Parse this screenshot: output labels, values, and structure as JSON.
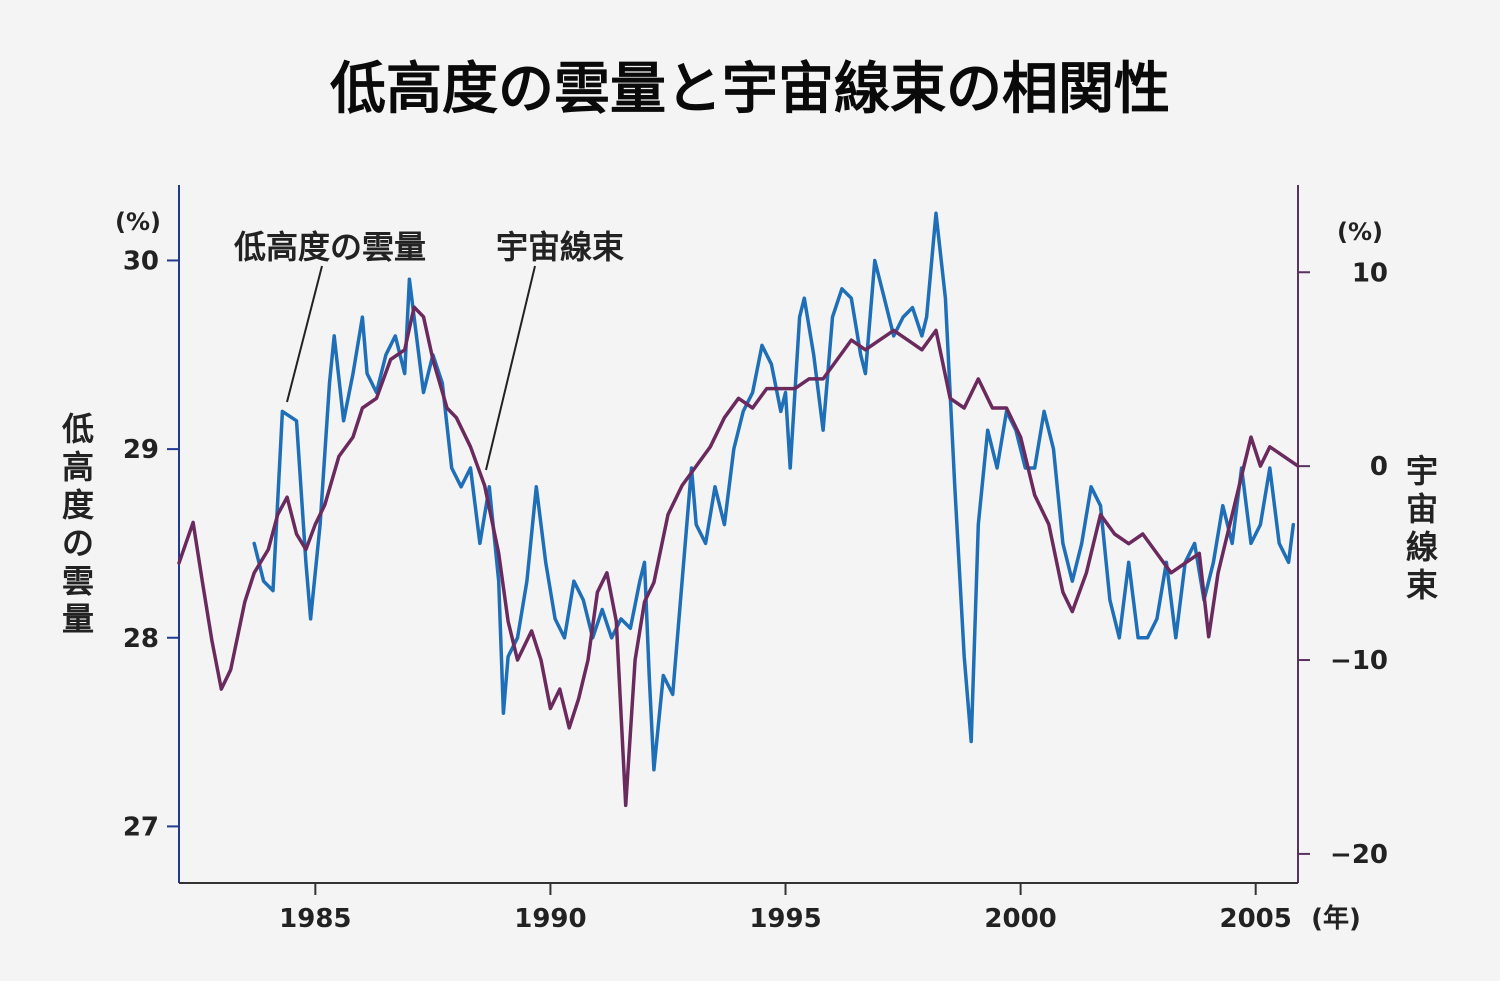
{
  "title": "低高度の雲量と宇宙線束の相関性",
  "chart_data": {
    "type": "line",
    "title": "低高度の雲量と宇宙線束の相関性",
    "x_unit": "(年)",
    "x_ticks": [
      "1985",
      "1990",
      "1995",
      "2000",
      "2005"
    ],
    "xlim": [
      1982.1,
      2005.9
    ],
    "left_axis": {
      "title": "低高度の雲量",
      "unit": "(%)",
      "ticks": [
        "27",
        "28",
        "29",
        "30"
      ],
      "ylim": [
        26.7,
        30.4
      ],
      "color": "#1f3a93"
    },
    "right_axis": {
      "title": "宇宙線束",
      "unit": "(%)",
      "ticks": [
        "−20",
        "−10",
        "0",
        "10"
      ],
      "ylim": [
        -21.5,
        14.5
      ],
      "color": "#5a3260"
    },
    "annotations": [
      "低高度の雲量",
      "宇宙線束"
    ],
    "series": [
      {
        "name": "低高度の雲量",
        "axis": "left",
        "color": "#1e6fb8",
        "points": [
          [
            1983.7,
            28.5
          ],
          [
            1983.9,
            28.3
          ],
          [
            1984.1,
            28.25
          ],
          [
            1984.3,
            29.2
          ],
          [
            1984.6,
            29.15
          ],
          [
            1984.8,
            28.4
          ],
          [
            1984.9,
            28.1
          ],
          [
            1985.1,
            28.6
          ],
          [
            1985.3,
            29.35
          ],
          [
            1985.4,
            29.6
          ],
          [
            1985.6,
            29.15
          ],
          [
            1985.8,
            29.4
          ],
          [
            1986.0,
            29.7
          ],
          [
            1986.1,
            29.4
          ],
          [
            1986.3,
            29.3
          ],
          [
            1986.5,
            29.5
          ],
          [
            1986.7,
            29.6
          ],
          [
            1986.9,
            29.4
          ],
          [
            1987.0,
            29.9
          ],
          [
            1987.1,
            29.7
          ],
          [
            1987.3,
            29.3
          ],
          [
            1987.5,
            29.5
          ],
          [
            1987.7,
            29.35
          ],
          [
            1987.9,
            28.9
          ],
          [
            1988.1,
            28.8
          ],
          [
            1988.3,
            28.9
          ],
          [
            1988.5,
            28.5
          ],
          [
            1988.7,
            28.8
          ],
          [
            1988.9,
            28.3
          ],
          [
            1989.0,
            27.6
          ],
          [
            1989.1,
            27.9
          ],
          [
            1989.3,
            28.0
          ],
          [
            1989.5,
            28.3
          ],
          [
            1989.7,
            28.8
          ],
          [
            1989.9,
            28.4
          ],
          [
            1990.1,
            28.1
          ],
          [
            1990.3,
            28.0
          ],
          [
            1990.5,
            28.3
          ],
          [
            1990.7,
            28.2
          ],
          [
            1990.9,
            28.0
          ],
          [
            1991.1,
            28.15
          ],
          [
            1991.3,
            28.0
          ],
          [
            1991.5,
            28.1
          ],
          [
            1991.7,
            28.05
          ],
          [
            1991.9,
            28.3
          ],
          [
            1992.0,
            28.4
          ],
          [
            1992.1,
            27.8
          ],
          [
            1992.2,
            27.3
          ],
          [
            1992.4,
            27.8
          ],
          [
            1992.6,
            27.7
          ],
          [
            1992.8,
            28.3
          ],
          [
            1993.0,
            28.9
          ],
          [
            1993.1,
            28.6
          ],
          [
            1993.3,
            28.5
          ],
          [
            1993.5,
            28.8
          ],
          [
            1993.7,
            28.6
          ],
          [
            1993.9,
            29.0
          ],
          [
            1994.1,
            29.2
          ],
          [
            1994.3,
            29.3
          ],
          [
            1994.5,
            29.55
          ],
          [
            1994.7,
            29.45
          ],
          [
            1994.9,
            29.2
          ],
          [
            1995.0,
            29.3
          ],
          [
            1995.1,
            28.9
          ],
          [
            1995.3,
            29.7
          ],
          [
            1995.4,
            29.8
          ],
          [
            1995.6,
            29.5
          ],
          [
            1995.8,
            29.1
          ],
          [
            1996.0,
            29.7
          ],
          [
            1996.2,
            29.85
          ],
          [
            1996.4,
            29.8
          ],
          [
            1996.6,
            29.5
          ],
          [
            1996.7,
            29.4
          ],
          [
            1996.9,
            30.0
          ],
          [
            1997.1,
            29.8
          ],
          [
            1997.3,
            29.6
          ],
          [
            1997.5,
            29.7
          ],
          [
            1997.7,
            29.75
          ],
          [
            1997.9,
            29.6
          ],
          [
            1998.0,
            29.7
          ],
          [
            1998.2,
            30.25
          ],
          [
            1998.4,
            29.8
          ],
          [
            1998.6,
            28.8
          ],
          [
            1998.8,
            27.9
          ],
          [
            1998.95,
            27.45
          ],
          [
            1999.1,
            28.6
          ],
          [
            1999.3,
            29.1
          ],
          [
            1999.5,
            28.9
          ],
          [
            1999.7,
            29.2
          ],
          [
            1999.9,
            29.1
          ],
          [
            2000.1,
            28.9
          ],
          [
            2000.3,
            28.9
          ],
          [
            2000.5,
            29.2
          ],
          [
            2000.7,
            29.0
          ],
          [
            2000.9,
            28.5
          ],
          [
            2001.1,
            28.3
          ],
          [
            2001.3,
            28.5
          ],
          [
            2001.5,
            28.8
          ],
          [
            2001.7,
            28.7
          ],
          [
            2001.9,
            28.2
          ],
          [
            2002.1,
            28.0
          ],
          [
            2002.3,
            28.4
          ],
          [
            2002.5,
            28.0
          ],
          [
            2002.7,
            28.0
          ],
          [
            2002.9,
            28.1
          ],
          [
            2003.1,
            28.4
          ],
          [
            2003.3,
            28.0
          ],
          [
            2003.5,
            28.4
          ],
          [
            2003.7,
            28.5
          ],
          [
            2003.9,
            28.2
          ],
          [
            2004.1,
            28.4
          ],
          [
            2004.3,
            28.7
          ],
          [
            2004.5,
            28.5
          ],
          [
            2004.7,
            28.9
          ],
          [
            2004.9,
            28.5
          ],
          [
            2005.1,
            28.6
          ],
          [
            2005.3,
            28.9
          ],
          [
            2005.5,
            28.5
          ],
          [
            2005.7,
            28.4
          ],
          [
            2005.8,
            28.6
          ]
        ]
      },
      {
        "name": "宇宙線束",
        "axis": "right",
        "color": "#6b2a5e",
        "points": [
          [
            1982.1,
            -5.0
          ],
          [
            1982.4,
            -2.9
          ],
          [
            1982.6,
            -6.0
          ],
          [
            1982.8,
            -9.0
          ],
          [
            1983.0,
            -11.5
          ],
          [
            1983.2,
            -10.5
          ],
          [
            1983.5,
            -7.0
          ],
          [
            1983.7,
            -5.5
          ],
          [
            1984.0,
            -4.3
          ],
          [
            1984.2,
            -2.5
          ],
          [
            1984.4,
            -1.6
          ],
          [
            1984.6,
            -3.5
          ],
          [
            1984.8,
            -4.3
          ],
          [
            1985.0,
            -3.0
          ],
          [
            1985.2,
            -2.0
          ],
          [
            1985.5,
            0.5
          ],
          [
            1985.8,
            1.5
          ],
          [
            1986.0,
            3.0
          ],
          [
            1986.3,
            3.5
          ],
          [
            1986.6,
            5.5
          ],
          [
            1986.9,
            6.0
          ],
          [
            1987.1,
            8.2
          ],
          [
            1987.3,
            7.7
          ],
          [
            1987.5,
            5.5
          ],
          [
            1987.8,
            3.0
          ],
          [
            1988.0,
            2.5
          ],
          [
            1988.3,
            1.0
          ],
          [
            1988.6,
            -1.0
          ],
          [
            1988.9,
            -4.5
          ],
          [
            1989.1,
            -8.0
          ],
          [
            1989.3,
            -10.0
          ],
          [
            1989.6,
            -8.5
          ],
          [
            1989.8,
            -10.0
          ],
          [
            1990.0,
            -12.5
          ],
          [
            1990.2,
            -11.5
          ],
          [
            1990.4,
            -13.5
          ],
          [
            1990.6,
            -12.0
          ],
          [
            1990.8,
            -10.0
          ],
          [
            1991.0,
            -6.5
          ],
          [
            1991.2,
            -5.5
          ],
          [
            1991.4,
            -8.0
          ],
          [
            1991.6,
            -17.5
          ],
          [
            1991.8,
            -10.0
          ],
          [
            1992.0,
            -7.0
          ],
          [
            1992.2,
            -6.0
          ],
          [
            1992.5,
            -2.5
          ],
          [
            1992.8,
            -1.0
          ],
          [
            1993.1,
            0.0
          ],
          [
            1993.4,
            1.0
          ],
          [
            1993.7,
            2.5
          ],
          [
            1994.0,
            3.5
          ],
          [
            1994.3,
            3.0
          ],
          [
            1994.6,
            4.0
          ],
          [
            1994.9,
            4.0
          ],
          [
            1995.2,
            4.0
          ],
          [
            1995.5,
            4.5
          ],
          [
            1995.8,
            4.5
          ],
          [
            1996.1,
            5.5
          ],
          [
            1996.4,
            6.5
          ],
          [
            1996.7,
            6.0
          ],
          [
            1997.0,
            6.5
          ],
          [
            1997.3,
            7.0
          ],
          [
            1997.6,
            6.5
          ],
          [
            1997.9,
            6.0
          ],
          [
            1998.2,
            7.0
          ],
          [
            1998.5,
            3.5
          ],
          [
            1998.8,
            3.0
          ],
          [
            1999.1,
            4.5
          ],
          [
            1999.4,
            3.0
          ],
          [
            1999.7,
            3.0
          ],
          [
            2000.0,
            1.5
          ],
          [
            2000.3,
            -1.5
          ],
          [
            2000.6,
            -3.0
          ],
          [
            2000.9,
            -6.5
          ],
          [
            2001.1,
            -7.5
          ],
          [
            2001.4,
            -5.5
          ],
          [
            2001.7,
            -2.5
          ],
          [
            2002.0,
            -3.5
          ],
          [
            2002.3,
            -4.0
          ],
          [
            2002.6,
            -3.5
          ],
          [
            2002.9,
            -4.5
          ],
          [
            2003.2,
            -5.5
          ],
          [
            2003.5,
            -5.0
          ],
          [
            2003.8,
            -4.5
          ],
          [
            2004.0,
            -8.8
          ],
          [
            2004.2,
            -5.5
          ],
          [
            2004.4,
            -3.5
          ],
          [
            2004.6,
            -1.5
          ],
          [
            2004.9,
            1.5
          ],
          [
            2005.1,
            0.0
          ],
          [
            2005.3,
            1.0
          ],
          [
            2005.6,
            0.5
          ],
          [
            2005.9,
            0.0
          ]
        ]
      }
    ]
  }
}
